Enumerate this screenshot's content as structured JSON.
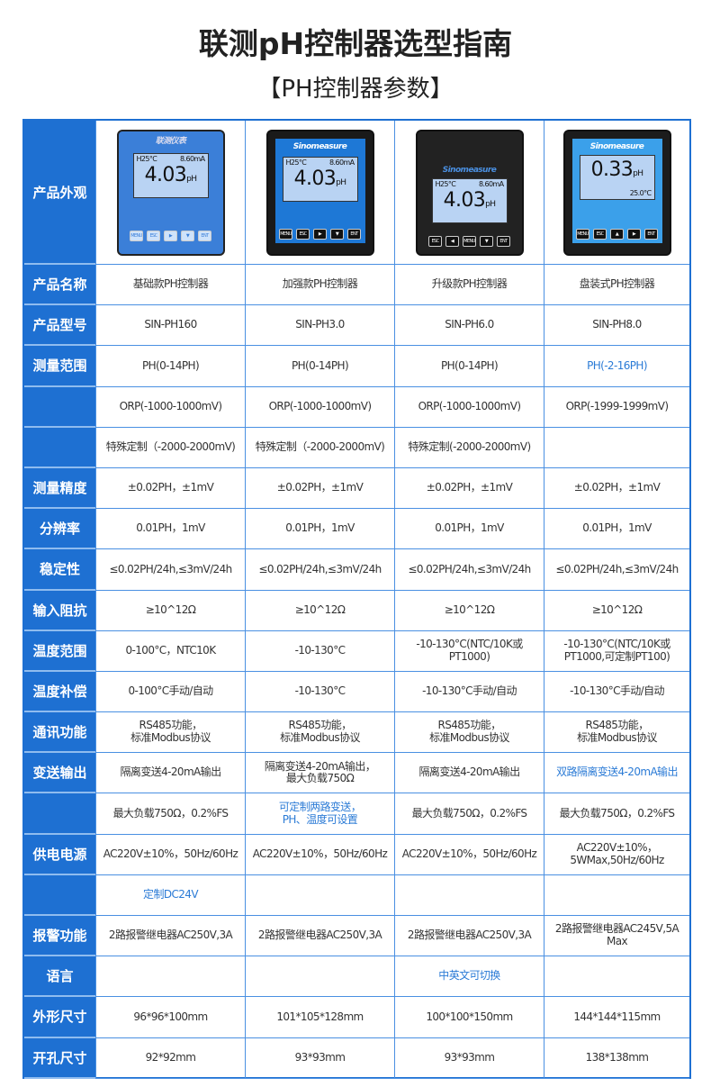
{
  "title": "联测pH控制器选型指南",
  "subtitle": "【PH控制器参数】",
  "colors": {
    "table_blue": "#1e70d2",
    "highlight_text": "#2b7bd6"
  },
  "header_label": "产品外观",
  "devices": [
    {
      "brand": "联测仪表",
      "top": "H25°C",
      "current": "8.60mA",
      "value": "4.03",
      "unit": "pH",
      "buttons": [
        "MENU",
        "ESC",
        "▶",
        "▼",
        "ENT"
      ]
    },
    {
      "brand": "Sinomeasure",
      "top": "H25°C",
      "current": "8.60mA",
      "value": "4.03",
      "unit": "pH",
      "buttons": [
        "MENU",
        "ESC",
        "▶",
        "▼",
        "ENT"
      ]
    },
    {
      "brand": "Sinomeasure",
      "top": "H25°C",
      "current": "8.60mA",
      "value": "4.03",
      "unit": "pH",
      "buttons": [
        "ESC",
        "◀",
        "MENU",
        "▼",
        "ENT"
      ]
    },
    {
      "brand": "Sinomeasure",
      "value": "0.33",
      "unit": "pH",
      "temp": "25.0°C",
      "buttons": [
        "MENU",
        "ESC",
        "▲",
        "▶",
        "ENT"
      ]
    }
  ],
  "rows": [
    {
      "label": "产品名称",
      "cells": [
        {
          "t": "基础款PH控制器"
        },
        {
          "t": "加强款PH控制器"
        },
        {
          "t": "升级款PH控制器"
        },
        {
          "t": "盘装式PH控制器"
        }
      ]
    },
    {
      "label": "产品型号",
      "cells": [
        {
          "t": "SIN-PH160"
        },
        {
          "t": "SIN-PH3.0"
        },
        {
          "t": "SIN-PH6.0"
        },
        {
          "t": "SIN-PH8.0"
        }
      ]
    },
    {
      "label": "测量范围",
      "cells": [
        {
          "t": "PH(0-14PH)"
        },
        {
          "t": "PH(0-14PH)"
        },
        {
          "t": "PH(0-14PH)"
        },
        {
          "t": "PH(-2-16PH)",
          "blue": true
        }
      ]
    },
    {
      "label": "",
      "cells": [
        {
          "t": "ORP(-1000-1000mV)"
        },
        {
          "t": "ORP(-1000-1000mV)"
        },
        {
          "t": "ORP(-1000-1000mV)"
        },
        {
          "t": "ORP(-1999-1999mV)"
        }
      ]
    },
    {
      "label": "",
      "cells": [
        {
          "t": "特殊定制（-2000-2000mV)"
        },
        {
          "t": "特殊定制（-2000-2000mV)"
        },
        {
          "t": "特殊定制(-2000-2000mV)"
        },
        {
          "t": ""
        }
      ]
    },
    {
      "label": "测量精度",
      "cells": [
        {
          "t": "±0.02PH，±1mV"
        },
        {
          "t": "±0.02PH，±1mV"
        },
        {
          "t": "±0.02PH，±1mV"
        },
        {
          "t": "±0.02PH，±1mV"
        }
      ]
    },
    {
      "label": "分辨率",
      "cells": [
        {
          "t": "0.01PH，1mV"
        },
        {
          "t": "0.01PH，1mV"
        },
        {
          "t": "0.01PH，1mV"
        },
        {
          "t": "0.01PH，1mV"
        }
      ]
    },
    {
      "label": "稳定性",
      "cells": [
        {
          "t": "≤0.02PH/24h,≤3mV/24h"
        },
        {
          "t": "≤0.02PH/24h,≤3mV/24h"
        },
        {
          "t": "≤0.02PH/24h,≤3mV/24h"
        },
        {
          "t": "≤0.02PH/24h,≤3mV/24h"
        }
      ]
    },
    {
      "label": "输入阻抗",
      "cells": [
        {
          "t": "≥10^12Ω"
        },
        {
          "t": "≥10^12Ω"
        },
        {
          "t": "≥10^12Ω"
        },
        {
          "t": "≥10^12Ω"
        }
      ]
    },
    {
      "label": "温度范围",
      "cells": [
        {
          "t": "0-100°C，NTC10K"
        },
        {
          "t": "-10-130°C"
        },
        {
          "t": "-10-130°C(NTC/10K或PT1000)"
        },
        {
          "t": "-10-130°C(NTC/10K或\nPT1000,可定制PT100)"
        }
      ]
    },
    {
      "label": "温度补偿",
      "cells": [
        {
          "t": "0-100°C手动/自动"
        },
        {
          "t": "-10-130°C"
        },
        {
          "t": "-10-130°C手动/自动"
        },
        {
          "t": "-10-130°C手动/自动"
        }
      ]
    },
    {
      "label": "通讯功能",
      "cells": [
        {
          "t": "RS485功能，\n标准Modbus协议"
        },
        {
          "t": "RS485功能，\n标准Modbus协议"
        },
        {
          "t": "RS485功能，\n标准Modbus协议"
        },
        {
          "t": "RS485功能，\n标准Modbus协议"
        }
      ]
    },
    {
      "label": "变送输出",
      "cells": [
        {
          "t": "隔离变送4-20mA输出"
        },
        {
          "t": "隔离变送4-20mA输出，\n最大负载750Ω"
        },
        {
          "t": "隔离变送4-20mA输出"
        },
        {
          "t": "双路隔离变送4-20mA输出",
          "blue": true
        }
      ]
    },
    {
      "label": "",
      "cells": [
        {
          "t": "最大负载750Ω，0.2%FS"
        },
        {
          "t": "可定制两路变送，\nPH、温度可设置",
          "blue": true
        },
        {
          "t": "最大负载750Ω，0.2%FS"
        },
        {
          "t": "最大负载750Ω，0.2%FS"
        }
      ]
    },
    {
      "label": "供电电源",
      "cells": [
        {
          "t": "AC220V±10%，50Hz/60Hz"
        },
        {
          "t": "AC220V±10%，50Hz/60Hz"
        },
        {
          "t": "AC220V±10%，50Hz/60Hz"
        },
        {
          "t": "AC220V±10%，\n5WMax,50Hz/60Hz"
        }
      ]
    },
    {
      "label": "",
      "cells": [
        {
          "t": "定制DC24V",
          "blue": true
        },
        {
          "t": ""
        },
        {
          "t": ""
        },
        {
          "t": ""
        }
      ]
    },
    {
      "label": "报警功能",
      "cells": [
        {
          "t": "2路报警继电器AC250V,3A"
        },
        {
          "t": "2路报警继电器AC250V,3A"
        },
        {
          "t": "2路报警继电器AC250V,3A"
        },
        {
          "t": "2路报警继电器AC245V,5A Max"
        }
      ]
    },
    {
      "label": "语言",
      "cells": [
        {
          "t": ""
        },
        {
          "t": ""
        },
        {
          "t": "中英文可切换",
          "blue": true
        },
        {
          "t": ""
        }
      ]
    },
    {
      "label": "外形尺寸",
      "cells": [
        {
          "t": "96*96*100mm"
        },
        {
          "t": "101*105*128mm"
        },
        {
          "t": "100*100*150mm"
        },
        {
          "t": "144*144*115mm"
        }
      ]
    },
    {
      "label": "开孔尺寸",
      "cells": [
        {
          "t": "92*92mm"
        },
        {
          "t": "93*93mm"
        },
        {
          "t": "93*93mm"
        },
        {
          "t": "138*138mm"
        }
      ]
    }
  ]
}
